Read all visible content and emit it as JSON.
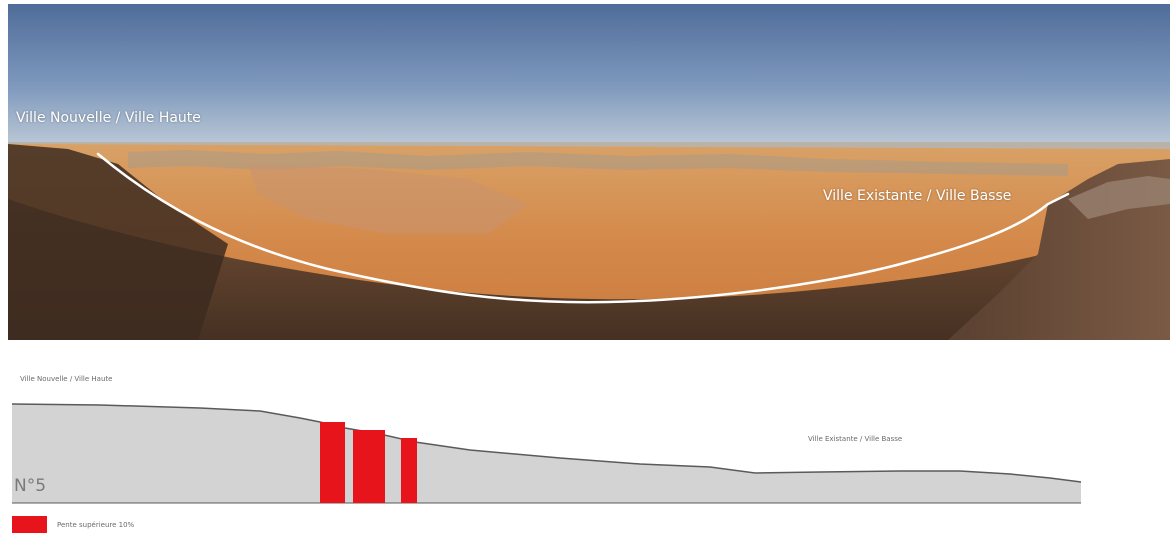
{
  "photo": {
    "label_left": "Ville Nouvelle / Ville Haute",
    "label_right": "Ville Existante / Ville Basse"
  },
  "profile": {
    "label_left": "Ville Nouvelle / Ville Haute",
    "label_right": "Ville Existante / Ville Basse",
    "number": "N°5",
    "fill_color": "#d3d3d3",
    "line_color": "#5a5a5a",
    "steep_color": "#e8141c"
  },
  "legend": {
    "label": "Pente supérieure 10%",
    "color": "#e8141c"
  }
}
